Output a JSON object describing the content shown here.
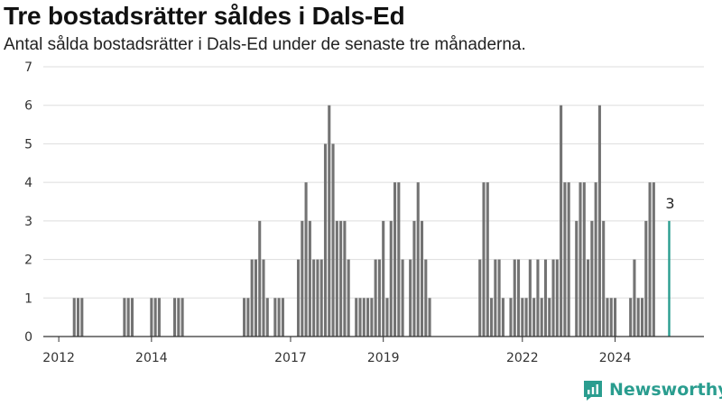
{
  "title": "Tre bostadsrätter såldes i Dals-Ed",
  "subtitle": "Antal sålda bostadsrätter i Dals-Ed under de senaste tre månaderna.",
  "brand": "Newsworthy",
  "colors": {
    "bar": "#737373",
    "highlight": "#2a9d8f",
    "grid": "#dddddd",
    "axis": "#333333"
  },
  "chart_data": {
    "type": "bar",
    "x_start": "2011-09",
    "x_end": "2025-12",
    "ylim": [
      0,
      7
    ],
    "yticks": [
      0,
      1,
      2,
      3,
      4,
      5,
      6,
      7
    ],
    "xticks": [
      {
        "label": "2012",
        "date": "2012-01"
      },
      {
        "label": "2014",
        "date": "2014-01"
      },
      {
        "label": "2017",
        "date": "2017-01"
      },
      {
        "label": "2019",
        "date": "2019-01"
      },
      {
        "label": "2022",
        "date": "2022-01"
      },
      {
        "label": "2024",
        "date": "2024-01"
      }
    ],
    "grid": true,
    "legend": "none",
    "bar_dates": [
      "2012-05",
      "2012-06",
      "2012-07",
      "2013-06",
      "2013-07",
      "2013-08",
      "2014-01",
      "2014-02",
      "2014-03",
      "2014-07",
      "2014-08",
      "2014-09",
      "2016-01",
      "2016-02",
      "2016-03",
      "2016-04",
      "2016-05",
      "2016-06",
      "2016-07",
      "2016-08",
      "2016-09",
      "2016-10",
      "2016-11",
      "2016-12",
      "2017-03",
      "2017-04",
      "2017-05",
      "2017-06",
      "2017-07",
      "2017-08",
      "2017-09",
      "2017-10",
      "2017-11",
      "2017-12",
      "2018-01",
      "2018-02",
      "2018-03",
      "2018-04",
      "2018-05",
      "2018-06",
      "2018-07",
      "2018-08",
      "2018-09",
      "2018-10",
      "2018-11",
      "2018-12",
      "2019-01",
      "2019-02",
      "2019-03",
      "2019-04",
      "2019-05",
      "2019-06",
      "2019-07",
      "2019-08",
      "2019-09",
      "2019-10",
      "2019-11",
      "2019-12",
      "2020-01",
      "2020-02",
      "2020-03",
      "2020-04",
      "2021-02",
      "2021-03",
      "2021-04",
      "2021-05",
      "2021-06",
      "2021-07",
      "2021-08",
      "2021-10",
      "2021-11",
      "2021-12",
      "2022-01",
      "2022-02",
      "2022-03",
      "2022-04",
      "2022-05",
      "2022-06",
      "2022-07",
      "2022-08",
      "2022-09",
      "2022-10",
      "2022-11",
      "2022-12",
      "2023-01",
      "2023-02",
      "2023-03",
      "2023-04",
      "2023-05",
      "2023-06",
      "2023-07",
      "2023-08",
      "2023-09",
      "2023-10",
      "2023-11",
      "2023-12",
      "2024-01",
      "2024-02",
      "2024-03",
      "2024-04",
      "2024-05",
      "2024-06",
      "2024-07",
      "2024-08",
      "2024-09",
      "2024-10",
      "2024-11"
    ],
    "values": [
      1,
      1,
      1,
      1,
      1,
      1,
      1,
      1,
      1,
      1,
      1,
      1,
      1,
      1,
      2,
      2,
      3,
      2,
      1,
      0,
      1,
      1,
      1,
      0,
      2,
      3,
      4,
      3,
      2,
      2,
      2,
      5,
      6,
      5,
      3,
      3,
      3,
      2,
      0,
      1,
      1,
      1,
      1,
      1,
      2,
      2,
      3,
      1,
      3,
      4,
      4,
      2,
      0,
      2,
      3,
      4,
      3,
      2,
      1,
      0,
      0,
      0,
      2,
      4,
      4,
      1,
      2,
      2,
      1,
      1,
      2,
      2,
      1,
      1,
      2,
      1,
      2,
      1,
      2,
      1,
      2,
      2,
      6,
      4,
      4,
      0,
      3,
      4,
      4,
      2,
      3,
      4,
      6,
      3,
      1,
      1,
      1,
      0,
      0,
      0,
      1,
      2,
      1,
      1,
      3,
      4,
      4
    ],
    "highlight_date": "2025-03",
    "highlight_value": 3,
    "highlight_label": "3"
  }
}
